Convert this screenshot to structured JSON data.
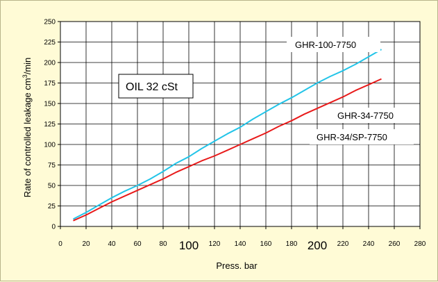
{
  "chart_data": {
    "type": "line",
    "xlabel": "Press.  bar",
    "ylabel": "Rate of controlled leakage  cm³/min",
    "xlim": [
      0,
      280
    ],
    "ylim": [
      0,
      250
    ],
    "x_ticks": [
      "0",
      "20",
      "40",
      "60",
      "80",
      "100",
      "120",
      "140",
      "160",
      "180",
      "200",
      "220",
      "240",
      "260",
      "280"
    ],
    "x_ticks_emphasized": [
      "100",
      "200"
    ],
    "y_ticks": [
      "0",
      "25",
      "50",
      "75",
      "100",
      "125",
      "150",
      "175",
      "200",
      "225",
      "250"
    ],
    "grid": true,
    "annotation_box": "OIL 32 cSt",
    "series": [
      {
        "name": "GHR-100-7750",
        "color": "#22c4e8",
        "x": [
          10,
          20,
          30,
          40,
          50,
          60,
          70,
          80,
          90,
          100,
          110,
          120,
          130,
          140,
          150,
          160,
          170,
          180,
          190,
          200,
          210,
          220,
          230,
          240,
          250
        ],
        "y": [
          9,
          17,
          26,
          35,
          43,
          50,
          58,
          67,
          77,
          85,
          95,
          104,
          113,
          121,
          131,
          140,
          149,
          157,
          166,
          175,
          183,
          190,
          198,
          207,
          216
        ]
      },
      {
        "name": "GHR-34-7750",
        "color": "#e81a1a",
        "x": [
          10,
          20,
          30,
          40,
          50,
          60,
          70,
          80,
          90,
          100,
          110,
          120,
          130,
          140,
          150,
          160,
          170,
          180,
          190,
          200,
          210,
          220,
          230,
          240,
          250
        ],
        "y": [
          7,
          14,
          22,
          30,
          37,
          44,
          51,
          58,
          66,
          73,
          80,
          86,
          93,
          100,
          107,
          114,
          122,
          129,
          137,
          144,
          151,
          158,
          166,
          173,
          180
        ]
      }
    ],
    "labels": [
      "GHR-100-7750",
      "GHR-34-7750",
      "GHR-34/SP-7750"
    ]
  }
}
